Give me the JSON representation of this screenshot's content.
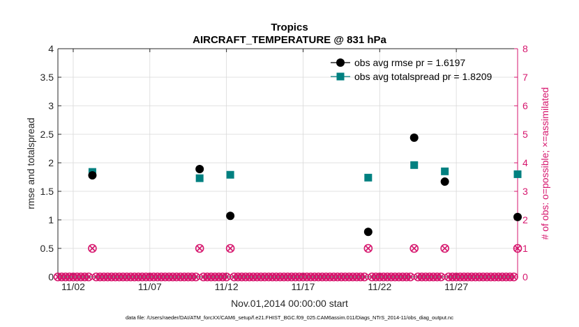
{
  "chart_data": {
    "type": "scatter",
    "title": "Tropics",
    "subtitle": "AIRCRAFT_TEMPERATURE @ 831 hPa",
    "xlabel": "Nov.01,2014 00:00:00 start",
    "ylabel_left": "rmse and totalspread",
    "ylabel_right": "# of obs: o=possible; ×=assimilated",
    "footnote": "data file: /Users/raeder/DAI/ATM_forcXX/CAM6_setup/f.e21.FHIST_BGC.f09_025.CAM6assim.011/Diags_NTrS_2014-11/obs_diag_output.nc",
    "xlim": [
      1,
      31
    ],
    "ylim_left": [
      0,
      4
    ],
    "ylim_right": [
      0,
      8
    ],
    "x_ticks": [
      2,
      7,
      12,
      17,
      22,
      27
    ],
    "x_tick_labels": [
      "11/02",
      "11/07",
      "11/12",
      "11/17",
      "11/22",
      "11/27"
    ],
    "y_ticks_left": [
      0,
      0.5,
      1,
      1.5,
      2,
      2.5,
      3,
      3.5,
      4
    ],
    "y_tick_labels_left": [
      "0",
      "0.5",
      "1",
      "1.5",
      "2",
      "2.5",
      "3",
      "3.5",
      "4"
    ],
    "y_ticks_right": [
      0,
      1,
      2,
      3,
      4,
      5,
      6,
      7,
      8
    ],
    "y_tick_labels_right": [
      "0",
      "1",
      "2",
      "3",
      "4",
      "5",
      "6",
      "7",
      "8"
    ],
    "legend_position": "top-right",
    "colors": {
      "rmse": "#000000",
      "spread": "#008080",
      "obs": "#d6166d",
      "grid": "#d9d9d9",
      "axis": "#262626"
    },
    "series": [
      {
        "name": "obs avg rmse pr = 1.6197",
        "marker": "circle",
        "axis": "left",
        "x": [
          3.25,
          10.25,
          12.25,
          21.25,
          24.25,
          26.25,
          31.0
        ],
        "values": [
          1.78,
          1.89,
          1.07,
          0.79,
          2.44,
          1.67,
          1.05
        ]
      },
      {
        "name": "obs avg totalspread pr = 1.8209",
        "marker": "square",
        "axis": "left",
        "x": [
          3.25,
          10.25,
          12.25,
          21.25,
          24.25,
          26.25,
          31.0
        ],
        "values": [
          1.84,
          1.73,
          1.79,
          1.74,
          1.96,
          1.85,
          1.8
        ]
      },
      {
        "name": "obs possible / assimilated",
        "marker": "circle-x",
        "axis": "right",
        "x": [
          1.0,
          1.25,
          1.5,
          1.75,
          2.0,
          2.25,
          2.5,
          2.75,
          3.0,
          3.25,
          3.5,
          3.75,
          4.0,
          4.25,
          4.5,
          4.75,
          5.0,
          5.25,
          5.5,
          5.75,
          6.0,
          6.25,
          6.5,
          6.75,
          7.0,
          7.25,
          7.5,
          7.75,
          8.0,
          8.25,
          8.5,
          8.75,
          9.0,
          9.25,
          9.5,
          9.75,
          10.0,
          10.25,
          10.5,
          10.75,
          11.0,
          11.25,
          11.5,
          11.75,
          12.0,
          12.25,
          12.5,
          12.75,
          13.0,
          13.25,
          13.5,
          13.75,
          14.0,
          14.25,
          14.5,
          14.75,
          15.0,
          15.25,
          15.5,
          15.75,
          16.0,
          16.25,
          16.5,
          16.75,
          17.0,
          17.25,
          17.5,
          17.75,
          18.0,
          18.25,
          18.5,
          18.75,
          19.0,
          19.25,
          19.5,
          19.75,
          20.0,
          20.25,
          20.5,
          20.75,
          21.0,
          21.25,
          21.5,
          21.75,
          22.0,
          22.25,
          22.5,
          22.75,
          23.0,
          23.25,
          23.5,
          23.75,
          24.0,
          24.25,
          24.5,
          24.75,
          25.0,
          25.25,
          25.5,
          25.75,
          26.0,
          26.25,
          26.5,
          26.75,
          27.0,
          27.25,
          27.5,
          27.75,
          28.0,
          28.25,
          28.5,
          28.75,
          29.0,
          29.25,
          29.5,
          29.75,
          30.0,
          30.25,
          30.5,
          30.75,
          31.0
        ],
        "values": [
          0,
          0,
          0,
          0,
          0,
          0,
          0,
          0,
          0,
          1,
          0,
          0,
          0,
          0,
          0,
          0,
          0,
          0,
          0,
          0,
          0,
          0,
          0,
          0,
          0,
          0,
          0,
          0,
          0,
          0,
          0,
          0,
          0,
          0,
          0,
          0,
          0,
          1,
          0,
          0,
          0,
          0,
          0,
          0,
          0,
          1,
          0,
          0,
          0,
          0,
          0,
          0,
          0,
          0,
          0,
          0,
          0,
          0,
          0,
          0,
          0,
          0,
          0,
          0,
          0,
          0,
          0,
          0,
          0,
          0,
          0,
          0,
          0,
          0,
          0,
          0,
          0,
          0,
          0,
          0,
          0,
          1,
          0,
          0,
          0,
          0,
          0,
          0,
          0,
          0,
          0,
          0,
          0,
          1,
          0,
          0,
          0,
          0,
          0,
          0,
          0,
          1,
          0,
          0,
          0,
          0,
          0,
          0,
          0,
          0,
          0,
          0,
          0,
          0,
          0,
          0,
          0,
          0,
          0,
          0,
          1
        ]
      }
    ]
  }
}
